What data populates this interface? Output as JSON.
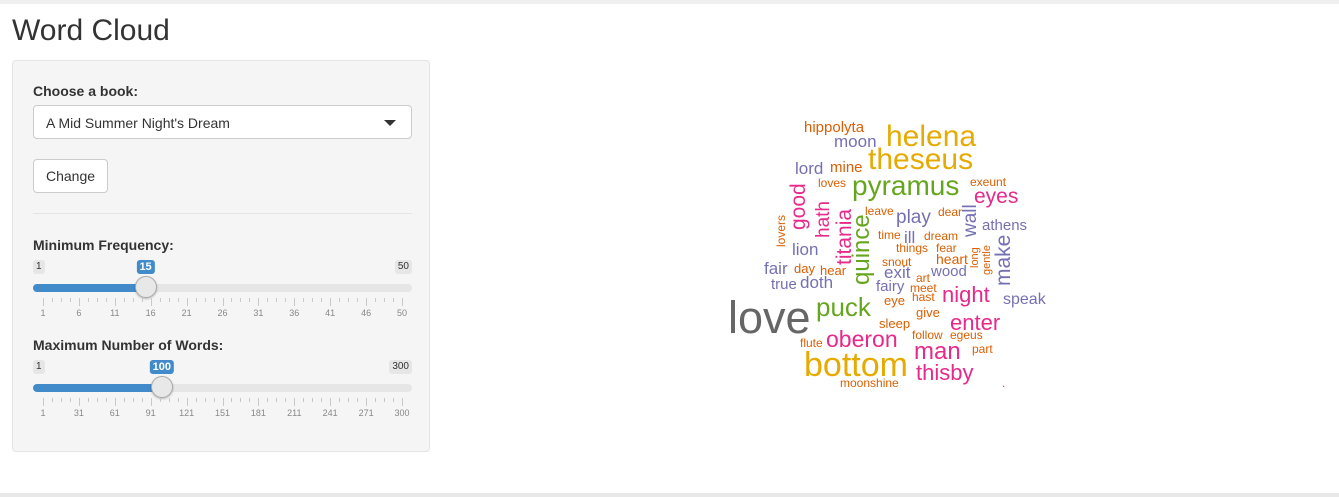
{
  "page": {
    "title": "Word Cloud"
  },
  "sidebar": {
    "book_label": "Choose a book:",
    "book_selected": "A Mid Summer Night's Dream",
    "change_button": "Change",
    "min_freq": {
      "label": "Minimum Frequency:",
      "min": 1,
      "max": 50,
      "value": 15,
      "min_text": "1",
      "max_text": "50",
      "value_text": "15",
      "tick_labels": [
        "1",
        "6",
        "11",
        "16",
        "21",
        "26",
        "31",
        "36",
        "41",
        "46",
        "50"
      ]
    },
    "max_words": {
      "label": "Maximum Number of Words:",
      "min": 1,
      "max": 300,
      "value": 100,
      "min_text": "1",
      "max_text": "300",
      "value_text": "100",
      "tick_labels": [
        "1",
        "31",
        "61",
        "91",
        "121",
        "151",
        "181",
        "211",
        "241",
        "271",
        "300"
      ]
    }
  },
  "colors": {
    "gray": "#666666",
    "orange": "#d95f02",
    "purple": "#7570b3",
    "pink": "#e7298a",
    "green": "#66a61e",
    "gold": "#e6ab02"
  },
  "word_cloud": [
    {
      "text": "hippolyta",
      "color": "orange",
      "size": 15
    },
    {
      "text": "helena",
      "color": "gold",
      "size": 30
    },
    {
      "text": "moon",
      "color": "purple",
      "size": 17
    },
    {
      "text": "theseus",
      "color": "gold",
      "size": 30
    },
    {
      "text": "lord",
      "color": "purple",
      "size": 17
    },
    {
      "text": "mine",
      "color": "orange",
      "size": 15
    },
    {
      "text": "pyramus",
      "color": "green",
      "size": 28
    },
    {
      "text": "exeunt",
      "color": "orange",
      "size": 12
    },
    {
      "text": "good",
      "color": "pink",
      "size": 21
    },
    {
      "text": "loves",
      "color": "orange",
      "size": 12
    },
    {
      "text": "eyes",
      "color": "pink",
      "size": 21
    },
    {
      "text": "hath",
      "color": "pink",
      "size": 19
    },
    {
      "text": "leave",
      "color": "orange",
      "size": 12
    },
    {
      "text": "play",
      "color": "purple",
      "size": 19
    },
    {
      "text": "dear",
      "color": "orange",
      "size": 12
    },
    {
      "text": "titania",
      "color": "pink",
      "size": 21
    },
    {
      "text": "lovers",
      "color": "orange",
      "size": 12
    },
    {
      "text": "wall",
      "color": "purple",
      "size": 19
    },
    {
      "text": "athens",
      "color": "purple",
      "size": 15
    },
    {
      "text": "ill",
      "color": "purple",
      "size": 17
    },
    {
      "text": "time",
      "color": "orange",
      "size": 12
    },
    {
      "text": "dream",
      "color": "orange",
      "size": 12
    },
    {
      "text": "lion",
      "color": "purple",
      "size": 17
    },
    {
      "text": "quince",
      "color": "green",
      "size": 24
    },
    {
      "text": "things",
      "color": "orange",
      "size": 12
    },
    {
      "text": "fear",
      "color": "orange",
      "size": 12
    },
    {
      "text": "gentle",
      "color": "orange",
      "size": 11
    },
    {
      "text": "long",
      "color": "orange",
      "size": 11
    },
    {
      "text": "make",
      "color": "purple",
      "size": 21
    },
    {
      "text": "snout",
      "color": "orange",
      "size": 12
    },
    {
      "text": "heart",
      "color": "orange",
      "size": 14
    },
    {
      "text": "fair",
      "color": "purple",
      "size": 17
    },
    {
      "text": "day",
      "color": "orange",
      "size": 13
    },
    {
      "text": "hear",
      "color": "orange",
      "size": 13
    },
    {
      "text": "exit",
      "color": "purple",
      "size": 17
    },
    {
      "text": "wood",
      "color": "purple",
      "size": 15
    },
    {
      "text": "art",
      "color": "orange",
      "size": 12
    },
    {
      "text": "true",
      "color": "purple",
      "size": 15
    },
    {
      "text": "doth",
      "color": "purple",
      "size": 17
    },
    {
      "text": "fairy",
      "color": "purple",
      "size": 15
    },
    {
      "text": "meet",
      "color": "orange",
      "size": 12
    },
    {
      "text": "night",
      "color": "pink",
      "size": 22
    },
    {
      "text": "hast",
      "color": "orange",
      "size": 12
    },
    {
      "text": "speak",
      "color": "purple",
      "size": 16
    },
    {
      "text": "love",
      "color": "gray",
      "size": 45
    },
    {
      "text": "puck",
      "color": "green",
      "size": 26
    },
    {
      "text": "eye",
      "color": "orange",
      "size": 13
    },
    {
      "text": "give",
      "color": "orange",
      "size": 13
    },
    {
      "text": "enter",
      "color": "pink",
      "size": 22
    },
    {
      "text": "sleep",
      "color": "orange",
      "size": 13
    },
    {
      "text": "follow",
      "color": "orange",
      "size": 12
    },
    {
      "text": "egeus",
      "color": "orange",
      "size": 12
    },
    {
      "text": "oberon",
      "color": "pink",
      "size": 23
    },
    {
      "text": "flute",
      "color": "orange",
      "size": 12
    },
    {
      "text": "man",
      "color": "pink",
      "size": 24
    },
    {
      "text": "part",
      "color": "orange",
      "size": 12
    },
    {
      "text": "bottom",
      "color": "gold",
      "size": 34
    },
    {
      "text": "thisby",
      "color": "pink",
      "size": 22
    },
    {
      "text": "moonshine",
      "color": "orange",
      "size": 12
    },
    {
      "text": ".",
      "color": "pink",
      "size": 12
    }
  ]
}
